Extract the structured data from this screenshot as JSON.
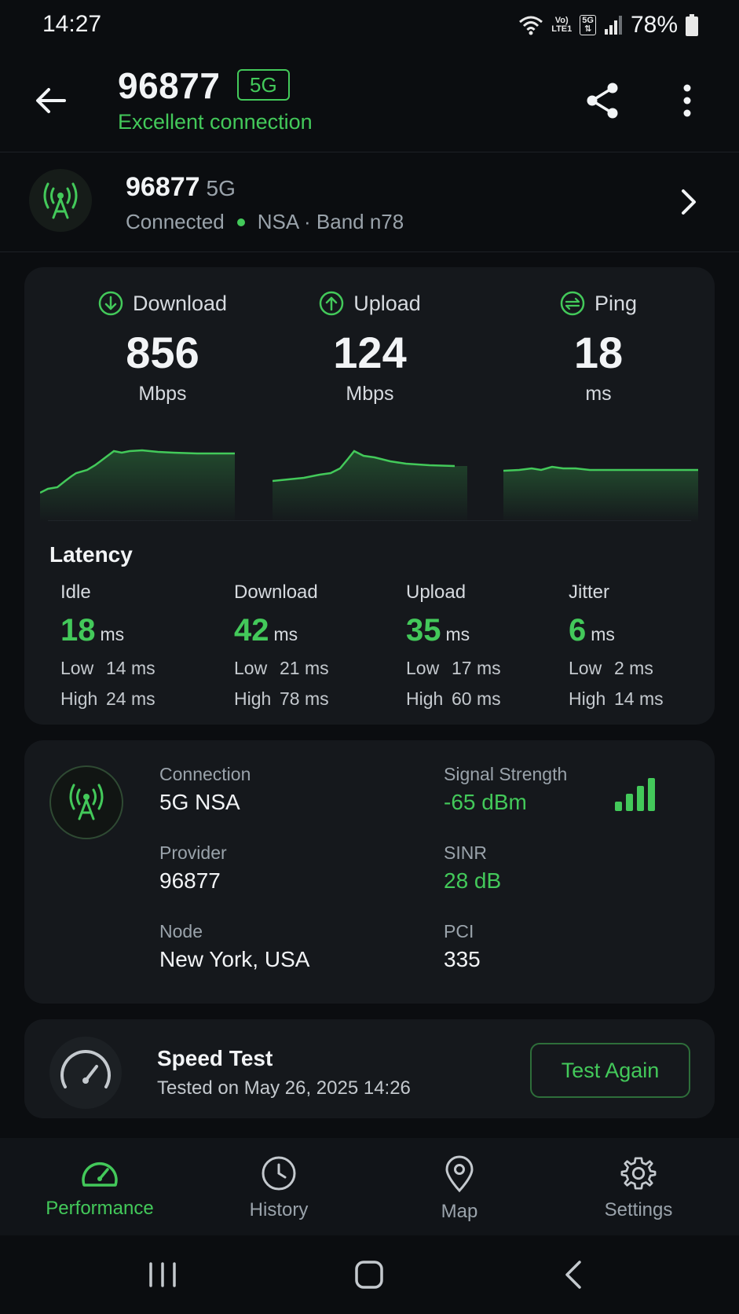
{
  "status_bar": {
    "time": "14:27",
    "volte": "Vo)",
    "lte": "LTE1",
    "network_badge": "5G",
    "battery": "78%",
    "icons": [
      "wifi-icon",
      "volte-icon",
      "5g-icon",
      "cell-signal-icon",
      "battery-icon"
    ]
  },
  "header": {
    "title": "96877",
    "badge": "5G",
    "subtitle": "Excellent connection",
    "icons": [
      "back-arrow-icon",
      "share-icon",
      "more-vertical-icon"
    ]
  },
  "connection": {
    "name": "96877",
    "type": "5G",
    "status": "Connected",
    "details": "NSA · Band n78",
    "icon": "antenna-icon"
  },
  "speed": {
    "metrics": [
      {
        "label": "Download",
        "value": "856",
        "unit": "Mbps",
        "icon": "download-circle-icon"
      },
      {
        "label": "Upload",
        "value": "124",
        "unit": "Mbps",
        "icon": "upload-circle-icon"
      },
      {
        "label": "Ping",
        "value": "18",
        "unit": "ms",
        "icon": "ping-circle-icon"
      }
    ]
  },
  "latency": {
    "title": "Latency",
    "low_label": "Low",
    "high_label": "High",
    "columns": [
      {
        "label": "Idle",
        "value": "18",
        "unit": "ms",
        "low": "14 ms",
        "high": "24 ms"
      },
      {
        "label": "Download",
        "value": "42",
        "unit": "ms",
        "low": "21 ms",
        "high": "78 ms"
      },
      {
        "label": "Upload",
        "value": "35",
        "unit": "ms",
        "low": "17 ms",
        "high": "60 ms"
      },
      {
        "label": "Jitter",
        "value": "6",
        "unit": "ms",
        "low": "2 ms",
        "high": "14 ms"
      }
    ]
  },
  "network": {
    "connection_label": "Connection",
    "connection_value": "5G NSA",
    "provider_label": "Provider",
    "provider_value": "96877",
    "node_label": "Node",
    "node_value": "New York, USA",
    "signal_label": "Signal Strength",
    "signal_value": "-65 dBm",
    "sinr_label": "SINR",
    "sinr_value": "28 dB",
    "pci_label": "PCI",
    "pci_value": "335",
    "signal_bars": {
      "filled": 4,
      "total": 4
    },
    "accent_color": "#43c95a"
  },
  "speed_test": {
    "title": "Speed Test",
    "date": "Tested on May 26, 2025 14:26",
    "button": "Test Again",
    "icon": "speedometer-icon"
  },
  "bottom_nav": {
    "items": [
      {
        "label": "Performance",
        "icon": "gauge-icon",
        "active": true
      },
      {
        "label": "History",
        "icon": "clock-icon",
        "active": false
      },
      {
        "label": "Map",
        "icon": "map-pin-icon",
        "active": false
      },
      {
        "label": "Settings",
        "icon": "gear-icon",
        "active": false
      }
    ]
  },
  "system_nav": {
    "icons": [
      "recents-icon",
      "home-icon",
      "back-icon"
    ]
  }
}
